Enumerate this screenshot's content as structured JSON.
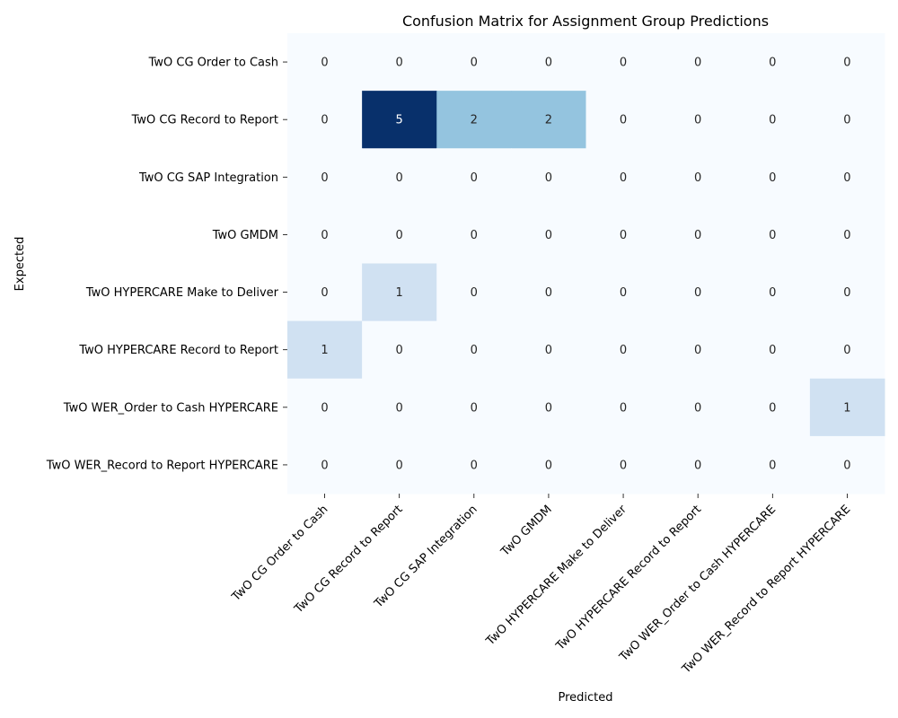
{
  "chart_data": {
    "type": "heatmap",
    "title": "Confusion Matrix for Assignment Group Predictions",
    "xlabel": "Predicted",
    "ylabel": "Expected",
    "x_categories": [
      "TwO CG Order to Cash",
      "TwO CG Record to Report",
      "TwO CG SAP Integration",
      "TwO GMDM",
      "TwO HYPERCARE Make to Deliver",
      "TwO HYPERCARE Record to Report",
      "TwO WER_Order to Cash HYPERCARE",
      "TwO WER_Record to Report HYPERCARE"
    ],
    "y_categories": [
      "TwO CG Order to Cash",
      "TwO CG Record to Report",
      "TwO CG SAP Integration",
      "TwO GMDM",
      "TwO HYPERCARE Make to Deliver",
      "TwO HYPERCARE Record to Report",
      "TwO WER_Order to Cash HYPERCARE",
      "TwO WER_Record to Report HYPERCARE"
    ],
    "values": [
      [
        0,
        0,
        0,
        0,
        0,
        0,
        0,
        0
      ],
      [
        0,
        5,
        2,
        2,
        0,
        0,
        0,
        0
      ],
      [
        0,
        0,
        0,
        0,
        0,
        0,
        0,
        0
      ],
      [
        0,
        0,
        0,
        0,
        0,
        0,
        0,
        0
      ],
      [
        0,
        1,
        0,
        0,
        0,
        0,
        0,
        0
      ],
      [
        1,
        0,
        0,
        0,
        0,
        0,
        0,
        0
      ],
      [
        0,
        0,
        0,
        0,
        0,
        0,
        0,
        1
      ],
      [
        0,
        0,
        0,
        0,
        0,
        0,
        0,
        0
      ]
    ],
    "value_range": [
      0,
      5
    ],
    "colormap": "Blues",
    "colorbar": false,
    "annotations": true
  }
}
